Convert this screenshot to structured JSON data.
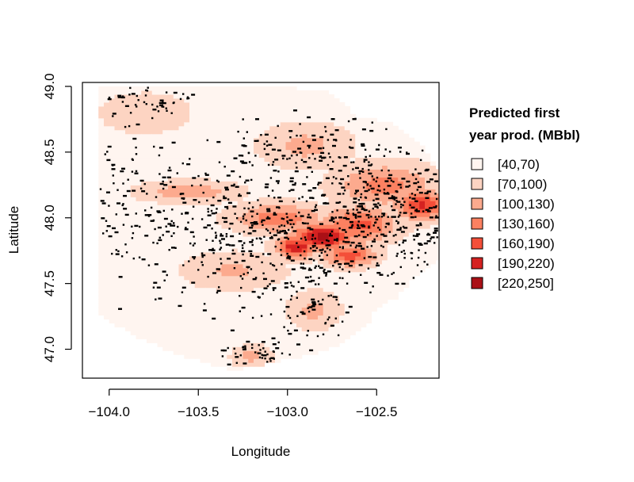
{
  "chart_data": {
    "type": "heatmap",
    "title": "",
    "xlabel": "Longitude",
    "ylabel": "Latitude",
    "xlim": [
      -104.15,
      -102.15
    ],
    "ylim": [
      46.78,
      49.03
    ],
    "x_ticks": [
      -104.0,
      -103.5,
      -103.0,
      -102.5
    ],
    "x_tick_labels": [
      "−104.0",
      "−103.5",
      "−103.0",
      "−102.5"
    ],
    "y_ticks": [
      47.0,
      47.5,
      48.0,
      48.5,
      49.0
    ],
    "y_tick_labels": [
      "47.0",
      "47.5",
      "48.0",
      "48.5",
      "49.0"
    ],
    "grid": false,
    "legend": {
      "title_lines": [
        "Predicted first",
        "year prod. (MBbl)"
      ],
      "placement": "right",
      "entries": [
        {
          "label": "[40,70)",
          "color": "#fff5f0"
        },
        {
          "label": "[70,100)",
          "color": "#fdd4c2"
        },
        {
          "label": "[100,130)",
          "color": "#fcaa8e"
        },
        {
          "label": "[130,160)",
          "color": "#fc8161"
        },
        {
          "label": "[160,190)",
          "color": "#f44f39"
        },
        {
          "label": "[190,220)",
          "color": "#d52221"
        },
        {
          "label": "[220,250]",
          "color": "#aa1016"
        }
      ]
    },
    "study_region_polygon": [
      [
        -104.05,
        49.0
      ],
      [
        -103.5,
        49.0
      ],
      [
        -102.78,
        48.98
      ],
      [
        -102.72,
        48.9
      ],
      [
        -102.6,
        48.76
      ],
      [
        -102.42,
        48.73
      ],
      [
        -102.25,
        48.55
      ],
      [
        -102.15,
        48.35
      ],
      [
        -102.15,
        47.7
      ],
      [
        -102.32,
        47.5
      ],
      [
        -102.38,
        47.4
      ],
      [
        -102.5,
        47.32
      ],
      [
        -102.55,
        47.2
      ],
      [
        -102.72,
        47.02
      ],
      [
        -102.9,
        46.95
      ],
      [
        -103.3,
        46.84
      ],
      [
        -103.6,
        46.95
      ],
      [
        -103.85,
        47.1
      ],
      [
        -104.05,
        47.25
      ],
      [
        -104.05,
        48.4
      ]
    ],
    "production_hotspots": [
      {
        "lon": -102.8,
        "lat": 47.86,
        "value": 235,
        "spread_lon": 0.12,
        "spread_lat": 0.07
      },
      {
        "lon": -102.95,
        "lat": 47.78,
        "value": 215,
        "spread_lon": 0.08,
        "spread_lat": 0.06
      },
      {
        "lon": -102.25,
        "lat": 48.1,
        "value": 195,
        "spread_lon": 0.1,
        "spread_lat": 0.08
      },
      {
        "lon": -102.65,
        "lat": 47.72,
        "value": 180,
        "spread_lon": 0.1,
        "spread_lat": 0.06
      },
      {
        "lon": -103.05,
        "lat": 48.0,
        "value": 150,
        "spread_lon": 0.18,
        "spread_lat": 0.08
      },
      {
        "lon": -102.45,
        "lat": 48.25,
        "value": 140,
        "spread_lon": 0.2,
        "spread_lat": 0.12
      },
      {
        "lon": -103.55,
        "lat": 48.2,
        "value": 120,
        "spread_lon": 0.2,
        "spread_lat": 0.06
      },
      {
        "lon": -102.9,
        "lat": 48.55,
        "value": 110,
        "spread_lon": 0.18,
        "spread_lat": 0.12
      },
      {
        "lon": -103.3,
        "lat": 47.6,
        "value": 105,
        "spread_lon": 0.2,
        "spread_lat": 0.1
      },
      {
        "lon": -103.2,
        "lat": 46.95,
        "value": 110,
        "spread_lon": 0.08,
        "spread_lat": 0.06
      },
      {
        "lon": -102.85,
        "lat": 47.3,
        "value": 110,
        "spread_lon": 0.1,
        "spread_lat": 0.1
      },
      {
        "lon": -103.8,
        "lat": 48.8,
        "value": 90,
        "spread_lon": 0.2,
        "spread_lat": 0.12
      },
      {
        "lon": -102.6,
        "lat": 47.95,
        "value": 170,
        "spread_lon": 0.15,
        "spread_lat": 0.1
      }
    ],
    "well_clusters": [
      {
        "lon": -102.8,
        "lat": 47.9,
        "spread_lon": 0.3,
        "spread_lat": 0.25,
        "count": 380
      },
      {
        "lon": -102.35,
        "lat": 48.1,
        "spread_lon": 0.18,
        "spread_lat": 0.18,
        "count": 170
      },
      {
        "lon": -103.4,
        "lat": 48.05,
        "spread_lon": 0.3,
        "spread_lat": 0.25,
        "count": 230
      },
      {
        "lon": -103.8,
        "lat": 48.9,
        "spread_lon": 0.15,
        "spread_lat": 0.08,
        "count": 50
      },
      {
        "lon": -103.0,
        "lat": 48.55,
        "spread_lon": 0.2,
        "spread_lat": 0.12,
        "count": 70
      },
      {
        "lon": -103.15,
        "lat": 46.96,
        "spread_lon": 0.12,
        "spread_lat": 0.05,
        "count": 45
      },
      {
        "lon": -102.9,
        "lat": 47.3,
        "spread_lon": 0.12,
        "spread_lat": 0.15,
        "count": 60
      },
      {
        "lon": -103.9,
        "lat": 48.2,
        "spread_lon": 0.15,
        "spread_lat": 0.3,
        "count": 60
      },
      {
        "lon": -103.4,
        "lat": 47.5,
        "spread_lon": 0.2,
        "spread_lat": 0.2,
        "count": 50
      },
      {
        "lon": -102.55,
        "lat": 48.5,
        "spread_lon": 0.15,
        "spread_lat": 0.15,
        "count": 40
      }
    ]
  }
}
